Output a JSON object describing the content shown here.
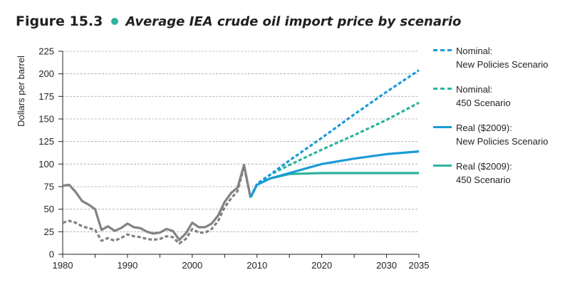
{
  "figure": {
    "label": "Figure 15.3",
    "title": "Average IEA crude oil import price by scenario"
  },
  "chart_data": {
    "type": "line",
    "title": "Average IEA crude oil import price by scenario",
    "ylabel": "Dollars per barrel",
    "xlabel": "",
    "xlim": [
      1980,
      2035
    ],
    "ylim": [
      0,
      225
    ],
    "yticks": [
      0,
      25,
      50,
      75,
      100,
      125,
      150,
      175,
      200,
      225
    ],
    "xticks": [
      1980,
      1990,
      2000,
      2010,
      2020,
      2030,
      2035
    ],
    "grid": "horizontal dashed",
    "legend_position": "right",
    "series": [
      {
        "name": "historical real",
        "color": "#808285",
        "style": "solid",
        "x": [
          1980,
          1981,
          1982,
          1983,
          1984,
          1985,
          1986,
          1987,
          1988,
          1989,
          1990,
          1991,
          1992,
          1993,
          1994,
          1995,
          1996,
          1997,
          1998,
          1999,
          2000,
          2001,
          2002,
          2003,
          2004,
          2005,
          2006,
          2007,
          2008,
          2009
        ],
        "values": [
          76,
          77,
          69,
          59,
          55,
          50,
          27,
          31,
          26,
          29,
          34,
          30,
          29,
          25,
          23,
          24,
          28,
          26,
          16,
          23,
          35,
          30,
          30,
          34,
          43,
          58,
          68,
          74,
          99,
          63
        ]
      },
      {
        "name": "historical nominal",
        "color": "#808285",
        "style": "dashed",
        "x": [
          1980,
          1981,
          1982,
          1983,
          1984,
          1985,
          1986,
          1987,
          1988,
          1989,
          1990,
          1991,
          1992,
          1993,
          1994,
          1995,
          1996,
          1997,
          1998,
          1999,
          2000,
          2001,
          2002,
          2003,
          2004,
          2005,
          2006,
          2007,
          2008,
          2009
        ],
        "values": [
          35,
          37,
          35,
          31,
          29,
          27,
          15,
          18,
          15,
          18,
          22,
          20,
          19,
          17,
          16,
          17,
          20,
          19,
          12,
          17,
          28,
          24,
          24,
          28,
          37,
          52,
          62,
          70,
          97,
          63
        ]
      },
      {
        "name": "Nominal: New Policies Scenario",
        "color": "#1a9bd7",
        "style": "dashed",
        "x": [
          2009,
          2010,
          2012,
          2015,
          2020,
          2025,
          2030,
          2035
        ],
        "values": [
          63,
          78,
          88,
          104,
          129,
          155,
          180,
          204
        ]
      },
      {
        "name": "Nominal: 450 Scenario",
        "color": "#2db39e",
        "style": "dashed",
        "x": [
          2009,
          2010,
          2012,
          2015,
          2020,
          2025,
          2030,
          2035
        ],
        "values": [
          63,
          78,
          88,
          99,
          116,
          132,
          149,
          168
        ]
      },
      {
        "name": "Real ($2009): New Policies Scenario",
        "color": "#1a9bd7",
        "style": "solid",
        "x": [
          2009,
          2010,
          2012,
          2015,
          2020,
          2025,
          2030,
          2035
        ],
        "values": [
          63,
          77,
          84,
          90,
          100,
          106,
          111,
          114
        ]
      },
      {
        "name": "Real ($2009): 450 Scenario",
        "color": "#2db39e",
        "style": "solid",
        "x": [
          2009,
          2010,
          2012,
          2015,
          2020,
          2025,
          2030,
          2035
        ],
        "values": [
          63,
          77,
          84,
          89,
          90,
          90,
          90,
          90
        ]
      }
    ]
  },
  "legend": [
    {
      "line1": "Nominal:",
      "line2": "New Policies Scenario",
      "color": "#1a9bd7",
      "style": "dashed"
    },
    {
      "line1": "Nominal:",
      "line2": "450 Scenario",
      "color": "#2db39e",
      "style": "dashed"
    },
    {
      "line1": "Real ($2009):",
      "line2": "New Policies Scenario",
      "color": "#1a9bd7",
      "style": "solid"
    },
    {
      "line1": "Real ($2009):",
      "line2": "450 Scenario",
      "color": "#2db39e",
      "style": "solid"
    }
  ]
}
